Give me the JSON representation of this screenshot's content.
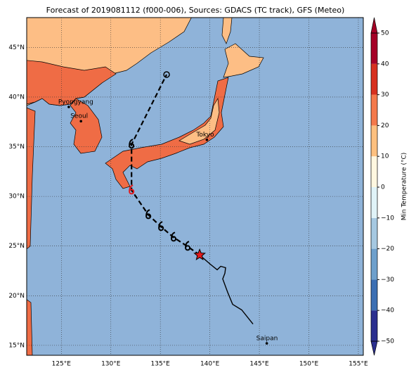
{
  "map": {
    "type": "track-map",
    "title": "Forecast of 2019081112 (f000-006), Sources: GDACS (TC track), GFS (Meteo)",
    "xlim": [
      121.5,
      155.5
    ],
    "ylim": [
      14,
      48
    ],
    "xticks": [
      {
        "value": 125,
        "label": "125°E"
      },
      {
        "value": 130,
        "label": "130°E"
      },
      {
        "value": 135,
        "label": "135°E"
      },
      {
        "value": 140,
        "label": "140°E"
      },
      {
        "value": 145,
        "label": "145°E"
      },
      {
        "value": 150,
        "label": "150°E"
      },
      {
        "value": 155,
        "label": "155°E"
      }
    ],
    "yticks": [
      {
        "value": 15,
        "label": "15°N"
      },
      {
        "value": 20,
        "label": "20°N"
      },
      {
        "value": 25,
        "label": "25°N"
      },
      {
        "value": 30,
        "label": "30°N"
      },
      {
        "value": 35,
        "label": "35°N"
      },
      {
        "value": 40,
        "label": "40°N"
      },
      {
        "value": 45,
        "label": "45°N"
      }
    ],
    "grid": true,
    "cities": [
      {
        "name": "Pyongyang",
        "lon": 125.75,
        "lat": 39.0
      },
      {
        "name": "Seoul",
        "lon": 126.98,
        "lat": 37.57
      },
      {
        "name": "Tokyo",
        "lon": 139.7,
        "lat": 35.7
      },
      {
        "name": "Saipan",
        "lon": 145.75,
        "lat": 15.2
      }
    ],
    "observed_track": {
      "lon": [
        144.36,
        143.22,
        142.3,
        141.8,
        141.3,
        141.52,
        141.59,
        141.1,
        140.74,
        140.03,
        138.97
      ],
      "lat": [
        17.15,
        18.57,
        19.13,
        20.34,
        21.69,
        22.26,
        22.82,
        22.96,
        22.61,
        23.18,
        24.1
      ]
    },
    "forecast_track": {
      "lon": [
        138.97,
        137.76,
        136.34,
        135.07,
        133.79,
        132.09,
        132.09,
        135.63
      ],
      "lat": [
        24.1,
        24.95,
        25.87,
        26.94,
        28.14,
        30.62,
        35.23,
        42.26
      ]
    },
    "colorbar": {
      "label": "Min Temperature (°C)",
      "lim": [
        -50,
        50
      ],
      "ticks": [
        {
          "value": -50,
          "label": "−50"
        },
        {
          "value": -40,
          "label": "−40"
        },
        {
          "value": -30,
          "label": "−30"
        },
        {
          "value": -20,
          "label": "−20"
        },
        {
          "value": -10,
          "label": "−10"
        },
        0,
        10,
        20,
        30,
        40,
        50
      ],
      "colors": [
        "#2b2f8f",
        "#3c6fb3",
        "#6ea0cc",
        "#a5c8e1",
        "#e0f3f8",
        "#fff7e0",
        "#fdc07f",
        "#f4794b",
        "#d7301f",
        "#a50026"
      ]
    }
  }
}
